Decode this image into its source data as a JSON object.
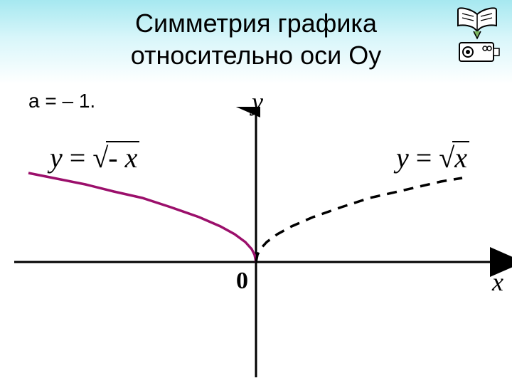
{
  "header": {
    "title_line1": "Симметрия графика",
    "title_line2": "относительно оси Оу",
    "gradient_top": "#a6e8f0",
    "gradient_mid": "#d8f6fa",
    "gradient_bottom": "#ffffff"
  },
  "condition": "а = – 1.",
  "chart": {
    "type": "line",
    "background_color": "#ffffff",
    "axis_color": "#000000",
    "axis_width": 3,
    "y_axis_x": 360,
    "x_axis_y": 218,
    "x_range": [
      -320,
      320
    ],
    "y_range": [
      -170,
      220
    ],
    "y_label": "y",
    "x_label": "x",
    "origin_label": "0",
    "label_fontsize": 36,
    "curves": [
      {
        "name": "sqrt_neg_x",
        "formula_var": "y",
        "formula_equals": "=",
        "formula_sqrt_arg": "- x",
        "color": "#9b0f6b",
        "width": 3.5,
        "dashed": false,
        "points": [
          [
            -320,
            125
          ],
          [
            -280,
            117
          ],
          [
            -240,
            109
          ],
          [
            -200,
            99
          ],
          [
            -160,
            90
          ],
          [
            -120,
            77
          ],
          [
            -80,
            63
          ],
          [
            -50,
            50
          ],
          [
            -30,
            39
          ],
          [
            -15,
            28
          ],
          [
            -6,
            18
          ],
          [
            -2,
            10
          ],
          [
            0,
            0
          ]
        ]
      },
      {
        "name": "sqrt_x",
        "formula_var": "y",
        "formula_equals": "=",
        "formula_sqrt_arg": "x",
        "color": "#000000",
        "width": 3.5,
        "dashed": true,
        "dash_pattern": "14 10",
        "points": [
          [
            0,
            0
          ],
          [
            2,
            10
          ],
          [
            6,
            18
          ],
          [
            15,
            28
          ],
          [
            30,
            39
          ],
          [
            50,
            50
          ],
          [
            80,
            63
          ],
          [
            120,
            77
          ],
          [
            160,
            90
          ],
          [
            200,
            99
          ],
          [
            230,
            106
          ],
          [
            260,
            113
          ],
          [
            290,
            118
          ]
        ]
      }
    ]
  },
  "icons": {
    "book_outline": "#000000",
    "book_fill": "#ffffff",
    "book_accent": "#7bb661"
  }
}
